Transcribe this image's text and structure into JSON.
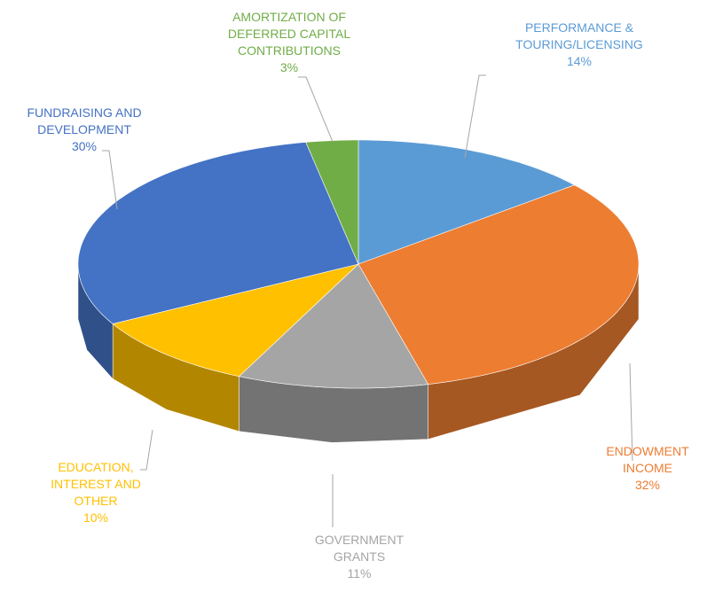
{
  "chart_data": {
    "type": "pie",
    "categories": [
      "PERFORMANCE & TOURING/LICENSING",
      "ENDOWMENT INCOME",
      "GOVERNMENT GRANTS",
      "EDUCATION, INTEREST AND OTHER",
      "FUNDRAISING AND DEVELOPMENT",
      "AMORTIZATION OF DEFERRED CAPITAL CONTRIBUTIONS"
    ],
    "values": [
      14,
      32,
      11,
      10,
      30,
      3
    ],
    "value_labels": [
      "14%",
      "32%",
      "11%",
      "10%",
      "30%",
      "3%"
    ],
    "colors": [
      "#5b9bd5",
      "#ed7d31",
      "#a5a5a5",
      "#ffc000",
      "#4472c4",
      "#70ad47"
    ]
  }
}
